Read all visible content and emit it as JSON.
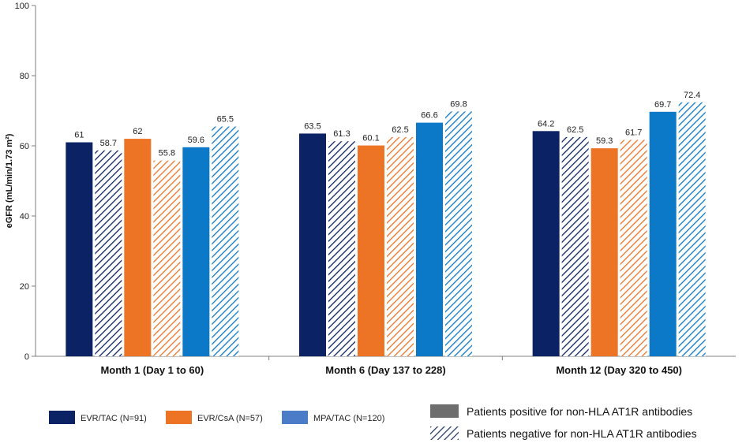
{
  "chart_data": {
    "type": "bar",
    "title": "",
    "xlabel": "",
    "ylabel": "eGFR (mL/min/1.73 m²)",
    "ylim": [
      0,
      100
    ],
    "yticks": [
      0,
      20,
      40,
      60,
      80,
      100
    ],
    "categories": [
      "Month 1 (Day 1 to 60)",
      "Month 6 (Day 137 to 228)",
      "Month 12 (Day 320 to 450)"
    ],
    "series": [
      {
        "name": "EVR/TAC positive",
        "treatment": "EVR/TAC",
        "pattern": "solid",
        "color": "#0b2264",
        "values": [
          61,
          63.5,
          64.2
        ],
        "labels": [
          "61",
          "63.5",
          "64.2"
        ]
      },
      {
        "name": "EVR/TAC negative",
        "treatment": "EVR/TAC",
        "pattern": "hatched",
        "color": "#0b2264",
        "values": [
          58.7,
          61.3,
          62.5
        ],
        "labels": [
          "58.7",
          "61.3",
          "62.5"
        ]
      },
      {
        "name": "EVR/CsA positive",
        "treatment": "EVR/CsA",
        "pattern": "solid",
        "color": "#ed7325",
        "values": [
          62,
          60.1,
          59.3
        ],
        "labels": [
          "62",
          "60.1",
          "59.3"
        ]
      },
      {
        "name": "EVR/CsA negative",
        "treatment": "EVR/CsA",
        "pattern": "hatched",
        "color": "#ed7325",
        "values": [
          55.8,
          62.5,
          61.7
        ],
        "labels": [
          "55.8",
          "62.5",
          "61.7"
        ]
      },
      {
        "name": "MPA/TAC positive",
        "treatment": "MPA/TAC",
        "pattern": "solid",
        "color": "#0b78c8",
        "values": [
          59.6,
          66.6,
          69.7
        ],
        "labels": [
          "59.6",
          "66.6",
          "69.7"
        ]
      },
      {
        "name": "MPA/TAC negative",
        "treatment": "MPA/TAC",
        "pattern": "hatched",
        "color": "#0b78c8",
        "values": [
          65.5,
          69.8,
          72.4
        ],
        "labels": [
          "65.5",
          "69.8",
          "72.4"
        ]
      }
    ],
    "legend": {
      "treatments": [
        {
          "label": "EVR/TAC (N=91)",
          "color": "#0b2264"
        },
        {
          "label": "EVR/CsA (N=57)",
          "color": "#ed7325"
        },
        {
          "label": "MPA/TAC (N=120)",
          "color": "#4a7cc8"
        }
      ],
      "patterns": [
        {
          "label": "Patients positive for non-HLA AT1R antibodies",
          "pattern": "solid",
          "color": "#6e6e6e"
        },
        {
          "label": "Patients negative for non-HLA AT1R antibodies",
          "pattern": "hatched",
          "color": "#2b3f6b"
        }
      ]
    }
  }
}
